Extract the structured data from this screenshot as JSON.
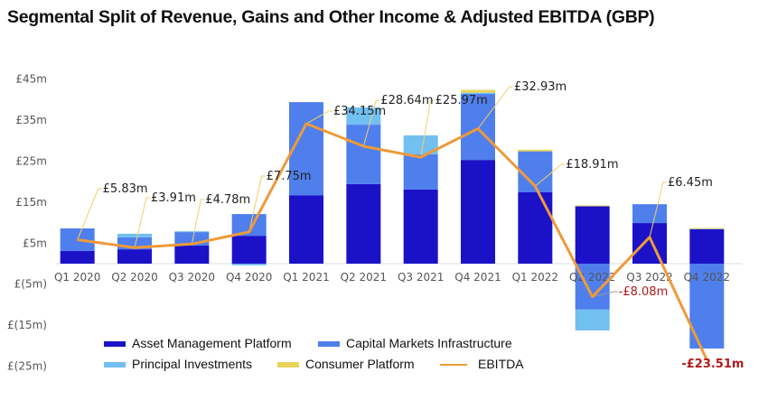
{
  "chart_data": {
    "type": "bar",
    "stacked": true,
    "title": "Segmental Split of Revenue, Gains and Other Income & Adjusted EBITDA (GBP)",
    "xlabel": "",
    "ylabel": "",
    "ylim": [
      -25,
      45
    ],
    "yticks": [
      {
        "value": 45,
        "label": "£45m"
      },
      {
        "value": 35,
        "label": "£35m"
      },
      {
        "value": 25,
        "label": "£25m"
      },
      {
        "value": 15,
        "label": "£15m"
      },
      {
        "value": 5,
        "label": "£5m"
      },
      {
        "value": -5,
        "label": "£(5m)"
      },
      {
        "value": -15,
        "label": "£(15m)"
      },
      {
        "value": -25,
        "label": "£(25m)"
      }
    ],
    "grid": false,
    "legend_position": "bottom",
    "categories": [
      "Q1 2020",
      "Q2 2020",
      "Q3 2020",
      "Q4 2020",
      "Q1 2021",
      "Q2 2021",
      "Q3 2021",
      "Q4 2021",
      "Q1 2022",
      "Q2 2022",
      "Q3 2022",
      "Q4 2022"
    ],
    "series": [
      {
        "name": "Asset Management Platform",
        "kind": "bar",
        "color": "#1b12c8",
        "values": [
          3.1,
          3.5,
          4.4,
          6.8,
          16.7,
          19.4,
          18.1,
          25.3,
          17.4,
          14.0,
          9.9,
          8.4
        ]
      },
      {
        "name": "Capital Markets Infrastructure",
        "kind": "bar",
        "color": "#4f7fec",
        "values": [
          5.5,
          2.9,
          3.3,
          5.3,
          22.7,
          14.5,
          8.6,
          16.1,
          10.0,
          -11.2,
          4.6,
          -20.7
        ]
      },
      {
        "name": "Principal Investments",
        "kind": "bar",
        "color": "#72bff2",
        "values": [
          0.0,
          0.9,
          0.2,
          -0.4,
          0.0,
          4.2,
          4.6,
          0.3,
          0.0,
          -5.1,
          0.0,
          0.2
        ]
      },
      {
        "name": "Consumer Platform",
        "kind": "bar",
        "color": "#ead35a",
        "values": [
          0.0,
          0.0,
          0.0,
          0.0,
          0.0,
          0.0,
          0.0,
          0.7,
          0.4,
          0.2,
          0.0,
          0.1
        ]
      },
      {
        "name": "EBITDA",
        "kind": "line",
        "color": "#ee9a3a",
        "values": [
          5.83,
          3.91,
          4.78,
          7.75,
          34.15,
          28.64,
          25.97,
          32.93,
          18.91,
          -8.08,
          6.45,
          -23.51
        ]
      }
    ],
    "data_labels": [
      "£5.83m",
      "£3.91m",
      "£4.78m",
      "£7.75m",
      "£34.15m",
      "£28.64m",
      "£25.97m",
      "£32.93m",
      "£18.91m",
      "-£8.08m",
      "£6.45m",
      "-£23.51m"
    ]
  }
}
